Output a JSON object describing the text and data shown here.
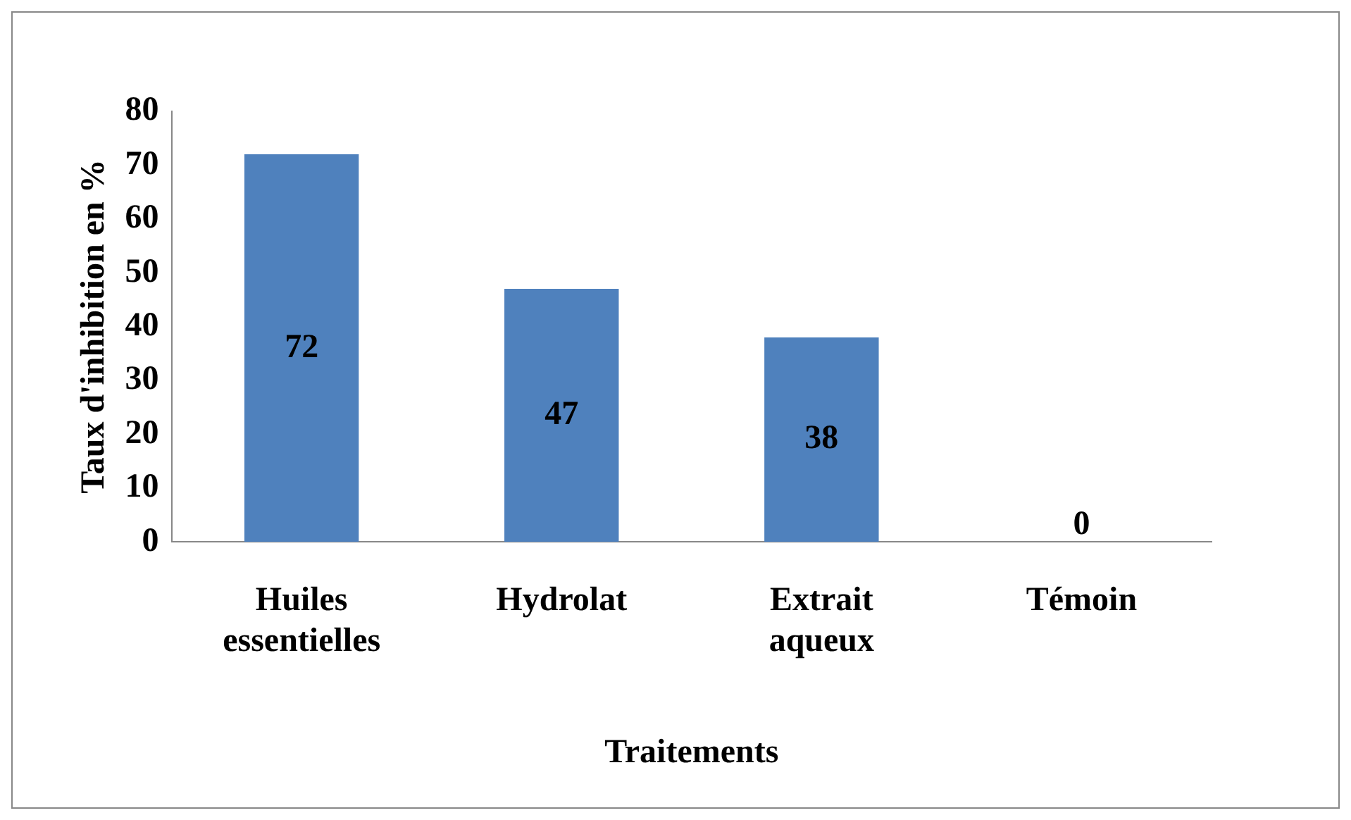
{
  "chart_data": {
    "type": "bar",
    "xlabel": "Traitements",
    "ylabel": "Taux d'inhibition en %",
    "categories": [
      "Huiles essentielles",
      "Hydrolat",
      "Extrait aqueux",
      "Témoin"
    ],
    "values": [
      72,
      47,
      38,
      0
    ],
    "color": "#4f81bd",
    "ylim": [
      0,
      80
    ],
    "yticks": [
      0,
      10,
      20,
      30,
      40,
      50,
      60,
      70,
      80
    ],
    "grid": false,
    "legend": false,
    "data_labels": true
  }
}
